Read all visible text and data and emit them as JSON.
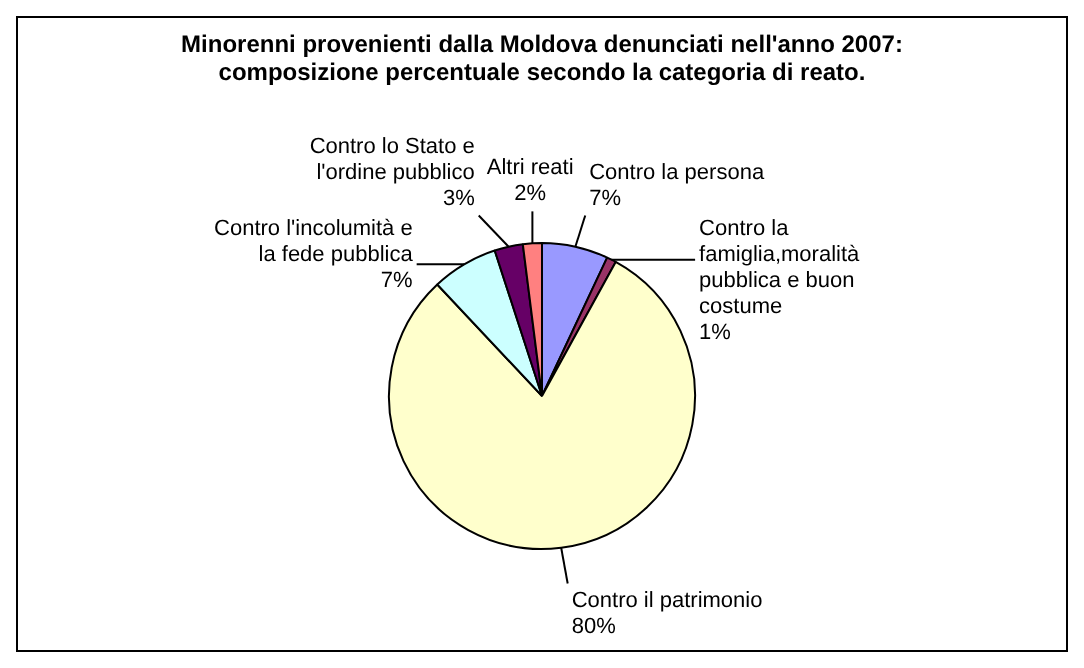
{
  "chart_data": {
    "type": "pie",
    "title": "Minorenni provenienti dalla Moldova denunciati nell'anno 2007: composizione percentuale secondo la categoria di reato.",
    "categories": [
      "Contro la persona",
      "Contro la famiglia,moralità pubblica e buon costume",
      "Contro il patrimonio",
      "Contro l'incolumità e la fede pubblica",
      "Contro lo Stato e l'ordine pubblico",
      "Altri reati"
    ],
    "values": [
      7,
      1,
      80,
      7,
      3,
      2
    ],
    "value_labels": [
      "7%",
      "1%",
      "80%",
      "7%",
      "3%",
      "2%"
    ],
    "colors": [
      "#9999ff",
      "#993366",
      "#ffffcc",
      "#ccffff",
      "#660066",
      "#ff8080"
    ],
    "legend": false
  }
}
